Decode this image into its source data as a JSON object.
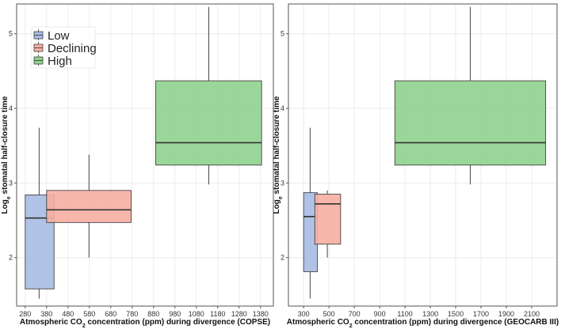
{
  "legend": [
    {
      "label": "Low",
      "color": "#a9bbe4"
    },
    {
      "label": "Declining",
      "color": "#f7aea1"
    },
    {
      "label": "High",
      "color": "#8fd18f"
    }
  ],
  "chart_data": [
    {
      "type": "box",
      "xlabel_main": "Atmospheric CO",
      "xlabel_sub": "2",
      "xlabel_rest": " concentration (ppm) during divergence (COPSE)",
      "ylabel_main": "Log",
      "ylabel_sub": "e",
      "ylabel_rest": " stomatal half-closure time",
      "xlim": [
        240,
        1440
      ],
      "ylim": [
        1.35,
        5.4
      ],
      "xticks": [
        280,
        380,
        480,
        580,
        680,
        780,
        880,
        980,
        1080,
        1180,
        1280,
        1380
      ],
      "yticks": [
        2,
        3,
        4,
        5
      ],
      "grid": true,
      "legend_position": "top-left",
      "boxes": [
        {
          "name": "Low",
          "xmin": 280,
          "xmax": 415,
          "q1": 1.58,
          "median": 2.53,
          "q3": 2.84,
          "whisker_low": 1.45,
          "whisker_high": 3.74,
          "whisker_x": 345
        },
        {
          "name": "Declining",
          "xmin": 380,
          "xmax": 775,
          "q1": 2.47,
          "median": 2.64,
          "q3": 2.9,
          "whisker_low": 2.0,
          "whisker_high": 3.38,
          "whisker_x": 578
        },
        {
          "name": "High",
          "xmin": 890,
          "xmax": 1385,
          "q1": 3.24,
          "median": 3.54,
          "q3": 4.37,
          "whisker_low": 2.98,
          "whisker_high": 5.36,
          "whisker_x": 1138
        }
      ]
    },
    {
      "type": "box",
      "xlabel_main": "Atmospheric CO",
      "xlabel_sub": "2",
      "xlabel_rest": " concentration (ppm) during divergence (GEOCARB III)",
      "ylabel_main": "Log",
      "ylabel_sub": "e",
      "ylabel_rest": " stomatal half-closure time",
      "xlim": [
        180,
        2300
      ],
      "ylim": [
        1.35,
        5.4
      ],
      "xticks": [
        300,
        500,
        700,
        900,
        1100,
        1300,
        1500,
        1700,
        1900,
        2100
      ],
      "xtick_labels": [
        "300",
        "500",
        "700",
        "900",
        "1100",
        "1300",
        "1500",
        "1700",
        "1900",
        "2100"
      ],
      "yticks": [
        2,
        3,
        4,
        5
      ],
      "grid": true,
      "boxes": [
        {
          "name": "Low",
          "xmin": 300,
          "xmax": 408,
          "q1": 1.81,
          "median": 2.55,
          "q3": 2.87,
          "whisker_low": 1.45,
          "whisker_high": 3.74,
          "whisker_x": 351
        },
        {
          "name": "Declining",
          "xmin": 388,
          "xmax": 592,
          "q1": 2.18,
          "median": 2.72,
          "q3": 2.85,
          "whisker_low": 2.0,
          "whisker_high": 2.9,
          "whisker_x": 487
        },
        {
          "name": "High",
          "xmin": 1020,
          "xmax": 2210,
          "q1": 3.24,
          "median": 3.54,
          "q3": 4.37,
          "whisker_low": 2.98,
          "whisker_high": 5.36,
          "whisker_x": 1615
        }
      ]
    }
  ]
}
